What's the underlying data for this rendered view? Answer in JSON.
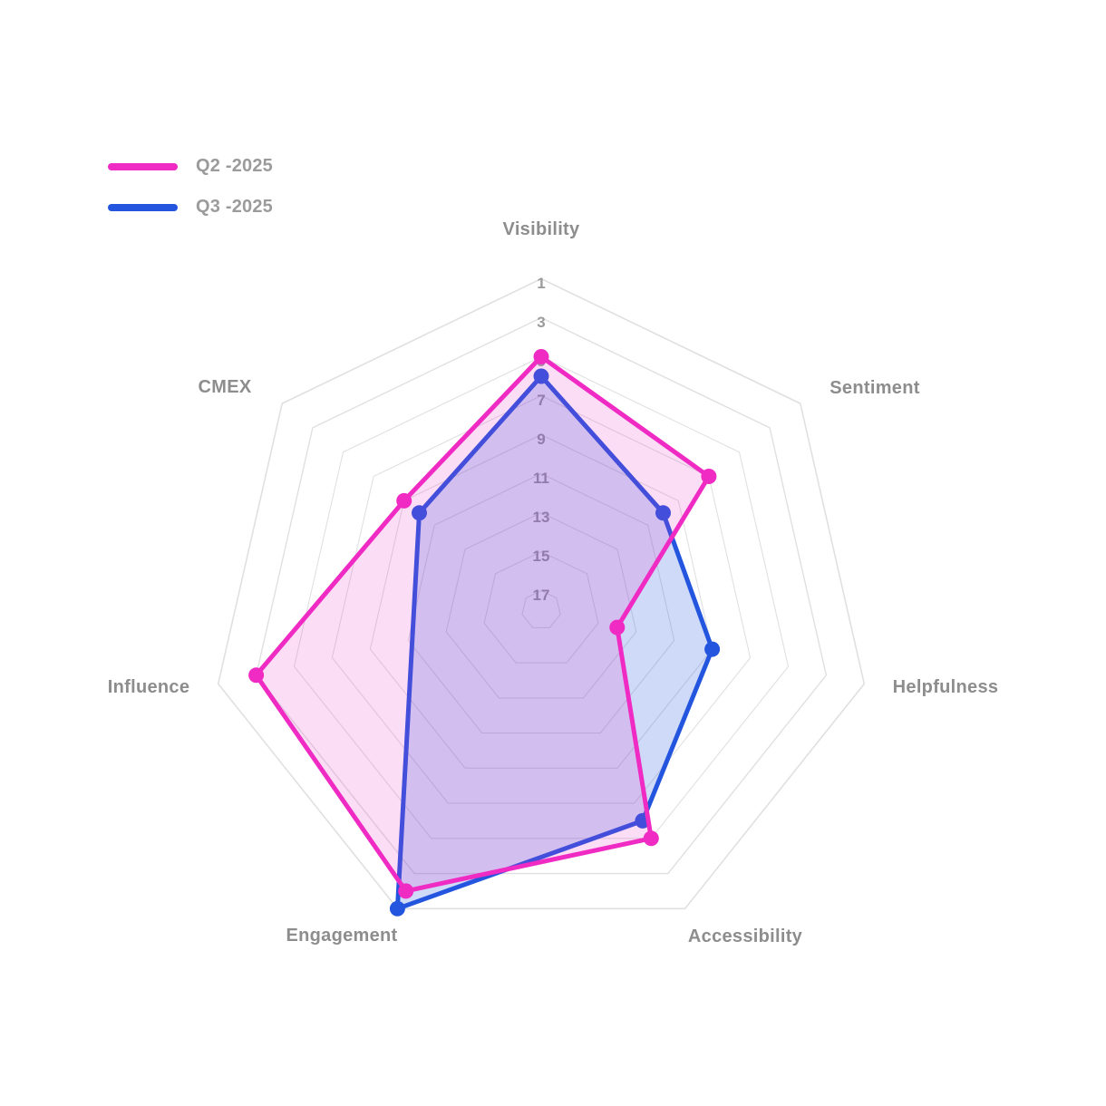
{
  "legend": {
    "items": [
      {
        "label": "Q2 -2025",
        "color": "#EF2BC4"
      },
      {
        "label": "Q3 -2025",
        "color": "#2355DE"
      }
    ]
  },
  "chart_data": {
    "type": "radar",
    "categories": [
      "Visibility",
      "Sentiment",
      "Helpfulness",
      "Accessibility",
      "Engagement",
      "Influence",
      "CMEX"
    ],
    "series": [
      {
        "name": "Q2 -2025",
        "color": "#EF2BC4",
        "fill_color": "rgba(239,43,196,0.16)",
        "values": [
          5,
          7,
          14,
          5,
          2,
          3,
          9
        ]
      },
      {
        "name": "Q3 -2025",
        "color": "#2355DE",
        "fill_color": "rgba(35,85,222,0.22)",
        "values": [
          6,
          10,
          9,
          6,
          1,
          null,
          10
        ]
      }
    ],
    "axis": {
      "tick_labels": [
        1,
        3,
        5,
        7,
        9,
        11,
        13,
        15,
        17
      ],
      "outer_value": 1,
      "center_value": 18,
      "reversed": true,
      "grid": "concentric-heptagons",
      "spokes": false
    },
    "legend_position": "top-left",
    "colors": {
      "grid": "#E0E0E0",
      "tick_text": "#9B9B9B",
      "axis_label_text": "#8D8D8D"
    }
  }
}
